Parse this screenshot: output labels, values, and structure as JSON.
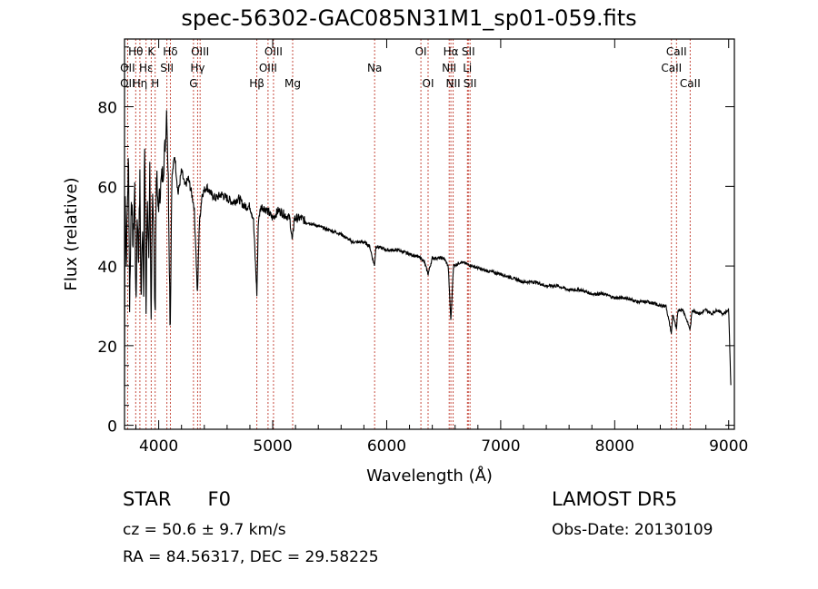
{
  "title": "spec-56302-GAC085N31M1_sp01-059.fits",
  "info": {
    "class_label": "STAR",
    "subclass": "F0",
    "redshift_text": "cz = 50.6 ± 9.7 km/s",
    "coords_text": "RA =  84.56317, DEC =  29.58225",
    "survey": "LAMOST DR5",
    "obs_date": "Obs-Date: 20130109"
  },
  "colors": {
    "spectrum": "#000000",
    "line_marker": "#c0392b",
    "axis": "#000000"
  },
  "chart_data": {
    "type": "line",
    "xlabel": "Wavelength (Å)",
    "ylabel": "Flux (relative)",
    "xlim": [
      3700,
      9050
    ],
    "ylim": [
      -1,
      97
    ],
    "xticks": [
      4000,
      5000,
      6000,
      7000,
      8000,
      9000
    ],
    "yticks": [
      0,
      20,
      40,
      60,
      80
    ],
    "grid": false,
    "legend": "none",
    "spectrum_knots": [
      [
        3700,
        10
      ],
      [
        3705,
        62
      ],
      [
        3715,
        40
      ],
      [
        3725,
        55
      ],
      [
        3735,
        68
      ],
      [
        3745,
        30
      ],
      [
        3760,
        58
      ],
      [
        3775,
        45
      ],
      [
        3790,
        60
      ],
      [
        3800,
        28
      ],
      [
        3812,
        55
      ],
      [
        3822,
        40
      ],
      [
        3835,
        62
      ],
      [
        3845,
        30
      ],
      [
        3858,
        52
      ],
      [
        3868,
        35
      ],
      [
        3876,
        72
      ],
      [
        3889,
        28
      ],
      [
        3900,
        58
      ],
      [
        3912,
        42
      ],
      [
        3922,
        64
      ],
      [
        3933,
        22
      ],
      [
        3945,
        60
      ],
      [
        3955,
        52
      ],
      [
        3968,
        25
      ],
      [
        3980,
        66
      ],
      [
        3992,
        54
      ],
      [
        4010,
        58
      ],
      [
        4025,
        62
      ],
      [
        4040,
        64
      ],
      [
        4060,
        72
      ],
      [
        4070,
        80
      ],
      [
        4085,
        60
      ],
      [
        4101,
        23
      ],
      [
        4115,
        62
      ],
      [
        4140,
        68
      ],
      [
        4170,
        58
      ],
      [
        4200,
        64
      ],
      [
        4230,
        60
      ],
      [
        4260,
        62
      ],
      [
        4290,
        58
      ],
      [
        4310,
        55
      ],
      [
        4325,
        45
      ],
      [
        4340,
        32
      ],
      [
        4355,
        50
      ],
      [
        4380,
        58
      ],
      [
        4420,
        60
      ],
      [
        4460,
        58
      ],
      [
        4500,
        57
      ],
      [
        4550,
        58
      ],
      [
        4600,
        57
      ],
      [
        4650,
        56
      ],
      [
        4700,
        57
      ],
      [
        4750,
        55
      ],
      [
        4800,
        55
      ],
      [
        4830,
        52
      ],
      [
        4861,
        33
      ],
      [
        4875,
        52
      ],
      [
        4900,
        55
      ],
      [
        4950,
        54
      ],
      [
        5000,
        52
      ],
      [
        5050,
        54
      ],
      [
        5100,
        53
      ],
      [
        5150,
        52
      ],
      [
        5172,
        46
      ],
      [
        5190,
        52
      ],
      [
        5250,
        52
      ],
      [
        5300,
        51
      ],
      [
        5400,
        50
      ],
      [
        5500,
        49
      ],
      [
        5600,
        48
      ],
      [
        5700,
        46
      ],
      [
        5800,
        46
      ],
      [
        5850,
        45
      ],
      [
        5893,
        40
      ],
      [
        5905,
        45
      ],
      [
        6000,
        44
      ],
      [
        6100,
        44
      ],
      [
        6200,
        43
      ],
      [
        6300,
        42
      ],
      [
        6330,
        41
      ],
      [
        6363,
        38
      ],
      [
        6400,
        42
      ],
      [
        6500,
        42
      ],
      [
        6540,
        40
      ],
      [
        6563,
        26
      ],
      [
        6585,
        40
      ],
      [
        6650,
        41
      ],
      [
        6750,
        40
      ],
      [
        6850,
        39
      ],
      [
        7000,
        38
      ],
      [
        7100,
        37
      ],
      [
        7200,
        36
      ],
      [
        7300,
        36
      ],
      [
        7400,
        35
      ],
      [
        7500,
        35
      ],
      [
        7600,
        34
      ],
      [
        7700,
        34
      ],
      [
        7800,
        33
      ],
      [
        7900,
        33
      ],
      [
        8000,
        32
      ],
      [
        8100,
        32
      ],
      [
        8200,
        31
      ],
      [
        8300,
        31
      ],
      [
        8400,
        30
      ],
      [
        8450,
        30
      ],
      [
        8498,
        23
      ],
      [
        8510,
        28
      ],
      [
        8542,
        24
      ],
      [
        8555,
        29
      ],
      [
        8600,
        29
      ],
      [
        8662,
        24
      ],
      [
        8680,
        29
      ],
      [
        8750,
        28
      ],
      [
        8800,
        29
      ],
      [
        8850,
        28
      ],
      [
        8900,
        29
      ],
      [
        8950,
        28
      ],
      [
        9000,
        29
      ],
      [
        9020,
        9
      ]
    ],
    "spectral_lines": [
      {
        "label": "OII",
        "wave": 3727,
        "row": 1
      },
      {
        "label": "OII",
        "wave": 3727,
        "row": 2
      },
      {
        "label": "Hθ",
        "wave": 3798,
        "row": 0
      },
      {
        "label": "Hη",
        "wave": 3835,
        "row": 2
      },
      {
        "label": "Hε",
        "wave": 3889,
        "row": 1
      },
      {
        "label": "K",
        "wave": 3934,
        "row": 0
      },
      {
        "label": "H",
        "wave": 3969,
        "row": 2
      },
      {
        "label": "Hδ",
        "wave": 4102,
        "row": 0
      },
      {
        "label": "SII",
        "wave": 4072,
        "row": 1
      },
      {
        "label": "OIII",
        "wave": 4363,
        "row": 0
      },
      {
        "label": "Hγ",
        "wave": 4341,
        "row": 1
      },
      {
        "label": "G",
        "wave": 4305,
        "row": 2
      },
      {
        "label": "Hβ",
        "wave": 4861,
        "row": 2
      },
      {
        "label": "OIII",
        "wave": 5007,
        "row": 0
      },
      {
        "label": "OIII",
        "wave": 4959,
        "row": 1
      },
      {
        "label": "Mg",
        "wave": 5175,
        "row": 2
      },
      {
        "label": "Na",
        "wave": 5894,
        "row": 1
      },
      {
        "label": "OI",
        "wave": 6300,
        "row": 0
      },
      {
        "label": "OI",
        "wave": 6363,
        "row": 2
      },
      {
        "label": "Hα",
        "wave": 6563,
        "row": 0
      },
      {
        "label": "NII",
        "wave": 6548,
        "row": 1
      },
      {
        "label": "NII",
        "wave": 6583,
        "row": 2
      },
      {
        "label": "SII",
        "wave": 6716,
        "row": 0
      },
      {
        "label": "Li",
        "wave": 6708,
        "row": 1
      },
      {
        "label": "SII",
        "wave": 6731,
        "row": 2
      },
      {
        "label": "CaII",
        "wave": 8542,
        "row": 0
      },
      {
        "label": "CaII",
        "wave": 8498,
        "row": 1
      },
      {
        "label": "CaII",
        "wave": 8662,
        "row": 2
      }
    ]
  }
}
